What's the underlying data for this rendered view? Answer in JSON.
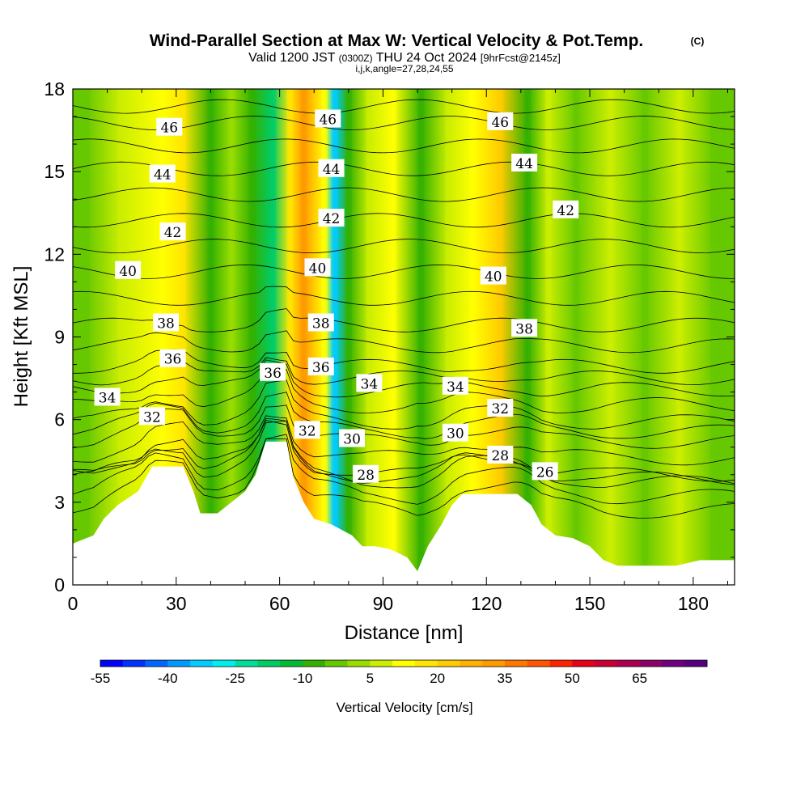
{
  "header": {
    "title": "Wind-Parallel Section at Max W: Vertical Velocity & Pot.Temp.",
    "copyright": "(C)",
    "valid_prefix": "Valid 1200 JST",
    "valid_utc": "(0300Z)",
    "valid_date": "THU 24 Oct 2024",
    "forecast_info": "[9hrFcst@2145z]",
    "grid_info": "i,j,k,angle=27,28,24,55"
  },
  "chart_data": {
    "type": "heatmap",
    "title": "Wind-Parallel Section at Max W: Vertical Velocity & Pot.Temp.",
    "xlabel": "Distance [nm]",
    "ylabel": "Height [Kft MSL]",
    "xlim": [
      0,
      192
    ],
    "ylim": [
      0,
      18
    ],
    "x_ticks": [
      0,
      30,
      60,
      90,
      120,
      150,
      180
    ],
    "y_ticks": [
      0,
      3,
      6,
      9,
      12,
      15,
      18
    ],
    "colorbar": {
      "label": "Vertical Velocity [cm/s]",
      "min": -55,
      "max": 80,
      "step": 5,
      "tick_labels": [
        -55,
        -40,
        -25,
        -10,
        5,
        20,
        35,
        50,
        65
      ],
      "colors": [
        "#0000ff",
        "#0033ff",
        "#0066ff",
        "#0099ff",
        "#00ccff",
        "#00eeee",
        "#00dd99",
        "#00cc66",
        "#00bb33",
        "#33b000",
        "#66c800",
        "#99dd00",
        "#ccee00",
        "#ffff00",
        "#ffe600",
        "#ffcc00",
        "#ffb000",
        "#ff9900",
        "#ff7700",
        "#ff5500",
        "#ff2200",
        "#e6001a",
        "#c80033",
        "#aa004d",
        "#8c0066",
        "#6e0080",
        "#550080"
      ]
    },
    "vertical_velocity_bands": [
      {
        "x": 4,
        "w": -4
      },
      {
        "x": 14,
        "w": 5
      },
      {
        "x": 26,
        "w": 10
      },
      {
        "x": 32,
        "w": 18
      },
      {
        "x": 40,
        "w": -7
      },
      {
        "x": 46,
        "w": 4
      },
      {
        "x": 52,
        "w": -7
      },
      {
        "x": 58,
        "w": -17
      },
      {
        "x": 63,
        "w": 15
      },
      {
        "x": 67,
        "w": 30
      },
      {
        "x": 73,
        "w": 12
      },
      {
        "x": 76,
        "w": -35
      },
      {
        "x": 80,
        "w": -6
      },
      {
        "x": 86,
        "w": 7
      },
      {
        "x": 93,
        "w": 13
      },
      {
        "x": 101,
        "w": -9
      },
      {
        "x": 109,
        "w": 6
      },
      {
        "x": 116,
        "w": 10
      },
      {
        "x": 124,
        "w": 20
      },
      {
        "x": 132,
        "w": -8
      },
      {
        "x": 138,
        "w": 6
      },
      {
        "x": 146,
        "w": -4
      },
      {
        "x": 156,
        "w": 5
      },
      {
        "x": 166,
        "w": -4
      },
      {
        "x": 176,
        "w": 5
      },
      {
        "x": 186,
        "w": -5
      }
    ],
    "terrain": [
      [
        0,
        1.5
      ],
      [
        6,
        1.8
      ],
      [
        9,
        2.4
      ],
      [
        13,
        2.9
      ],
      [
        19,
        3.4
      ],
      [
        23,
        4.3
      ],
      [
        32,
        4.3
      ],
      [
        35,
        3.4
      ],
      [
        37,
        2.6
      ],
      [
        42,
        2.6
      ],
      [
        45,
        2.9
      ],
      [
        50,
        3.4
      ],
      [
        53,
        4.0
      ],
      [
        56,
        5.2
      ],
      [
        62,
        5.2
      ],
      [
        64,
        3.9
      ],
      [
        67,
        3.0
      ],
      [
        70,
        2.4
      ],
      [
        75,
        2.2
      ],
      [
        81,
        1.8
      ],
      [
        84,
        1.4
      ],
      [
        88,
        1.4
      ],
      [
        92,
        1.3
      ],
      [
        97,
        1.0
      ],
      [
        100,
        0.5
      ],
      [
        103,
        1.4
      ],
      [
        107,
        2.2
      ],
      [
        110,
        2.9
      ],
      [
        113,
        3.3
      ],
      [
        129,
        3.3
      ],
      [
        133,
        2.9
      ],
      [
        136,
        2.2
      ],
      [
        140,
        1.8
      ],
      [
        145,
        1.7
      ],
      [
        150,
        1.4
      ],
      [
        154,
        0.9
      ],
      [
        158,
        0.7
      ],
      [
        162,
        0.7
      ],
      [
        166,
        0.7
      ],
      [
        175,
        0.7
      ],
      [
        182,
        0.9
      ],
      [
        192,
        0.9
      ]
    ],
    "theta_contour_interval": 1,
    "theta_contour_labels": [
      {
        "value": 46,
        "x": 28,
        "y": 16.6
      },
      {
        "value": 44,
        "x": 26,
        "y": 14.9
      },
      {
        "value": 42,
        "x": 29,
        "y": 12.8
      },
      {
        "value": 40,
        "x": 16,
        "y": 11.4
      },
      {
        "value": 38,
        "x": 27,
        "y": 9.5
      },
      {
        "value": 36,
        "x": 29,
        "y": 8.2
      },
      {
        "value": 34,
        "x": 10,
        "y": 6.8
      },
      {
        "value": 32,
        "x": 23,
        "y": 6.1
      },
      {
        "value": 46,
        "x": 74,
        "y": 16.9
      },
      {
        "value": 44,
        "x": 75,
        "y": 15.1
      },
      {
        "value": 42,
        "x": 75,
        "y": 13.3
      },
      {
        "value": 40,
        "x": 71,
        "y": 11.5
      },
      {
        "value": 38,
        "x": 72,
        "y": 9.5
      },
      {
        "value": 36,
        "x": 58,
        "y": 7.7
      },
      {
        "value": 36,
        "x": 72,
        "y": 7.9
      },
      {
        "value": 34,
        "x": 86,
        "y": 7.3
      },
      {
        "value": 32,
        "x": 68,
        "y": 5.6
      },
      {
        "value": 30,
        "x": 81,
        "y": 5.3
      },
      {
        "value": 28,
        "x": 85,
        "y": 4.0
      },
      {
        "value": 34,
        "x": 111,
        "y": 7.2
      },
      {
        "value": 30,
        "x": 111,
        "y": 5.5
      },
      {
        "value": 46,
        "x": 124,
        "y": 16.8
      },
      {
        "value": 44,
        "x": 131,
        "y": 15.3
      },
      {
        "value": 42,
        "x": 143,
        "y": 13.6
      },
      {
        "value": 40,
        "x": 122,
        "y": 11.2
      },
      {
        "value": 38,
        "x": 131,
        "y": 9.3
      },
      {
        "value": 32,
        "x": 124,
        "y": 6.4
      },
      {
        "value": 28,
        "x": 124,
        "y": 4.7
      },
      {
        "value": 26,
        "x": 137,
        "y": 4.1
      }
    ]
  }
}
